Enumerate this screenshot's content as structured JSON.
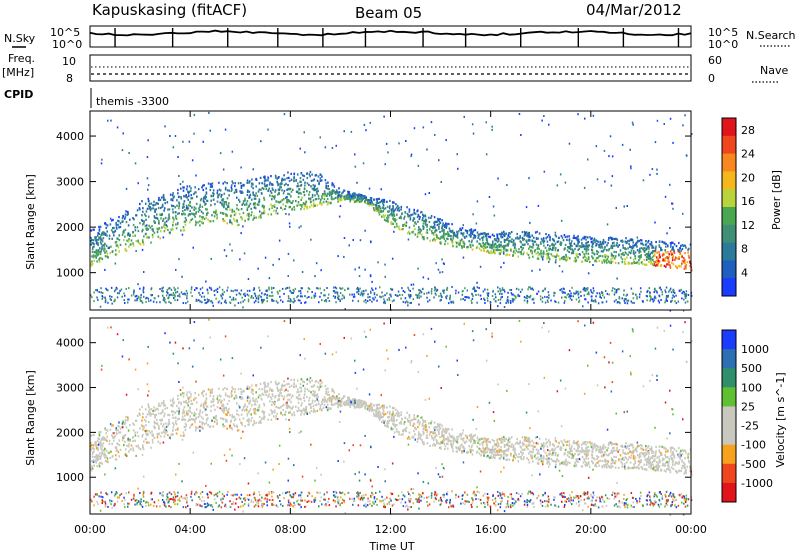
{
  "header": {
    "station": "Kapuskasing (fitACF)",
    "beam": "Beam 05",
    "date": "04/Mar/2012"
  },
  "status_panels": {
    "nsky_label": "N.Sky",
    "nsky_ticks": [
      "10^5",
      "10^0"
    ],
    "nsearch_label": "N.Search",
    "nsearch_ticks": [
      "10^5",
      "10^0"
    ],
    "freq_label": "Freq.",
    "freq_unit": "[MHz]",
    "freq_ticks": [
      "10",
      "8"
    ],
    "nave_label": "Nave",
    "nave_ticks": [
      "60",
      "0"
    ],
    "cpid_label": "CPID",
    "cpid_value": "themis -3300"
  },
  "x_axis": {
    "label": "Time UT",
    "ticks": [
      "00:00",
      "04:00",
      "08:00",
      "12:00",
      "16:00",
      "20:00",
      "00:00"
    ]
  },
  "colors": {
    "power": [
      "#1a3cff",
      "#1f5fbe",
      "#2c7a9a",
      "#3e8f73",
      "#49a752",
      "#b9d43a",
      "#f5b81c",
      "#f7871e",
      "#f0461e",
      "#e0141a"
    ],
    "velocity": [
      "#e0141a",
      "#f0461e",
      "#f6a21e",
      "#c8c8be",
      "#c8c8be",
      "#5fc032",
      "#2e8f6b",
      "#2c6fb2",
      "#1a3cff"
    ]
  },
  "chart_data": [
    {
      "type": "heatmap",
      "title": "",
      "xlabel": "Time UT",
      "ylabel": "Slant Range [km]",
      "xlim": [
        0,
        24
      ],
      "ylim": [
        180,
        4550
      ],
      "yticks": [
        "1000",
        "2000",
        "3000",
        "4000"
      ],
      "colorbar": {
        "label": "Power [dB]",
        "ticks": [
          "4",
          "8",
          "12",
          "16",
          "20",
          "24",
          "28"
        ],
        "range": [
          0,
          30
        ]
      },
      "echo_envelope": {
        "x": [
          0,
          1,
          2,
          3,
          4,
          5,
          6,
          7,
          8,
          9,
          10,
          11,
          12,
          13,
          14,
          15,
          16,
          17,
          18,
          19,
          20,
          21,
          22,
          23,
          24
        ],
        "lower_range": [
          1150,
          1400,
          1600,
          1800,
          2000,
          2150,
          2050,
          2250,
          2400,
          2450,
          2600,
          2550,
          2050,
          1800,
          1650,
          1550,
          1450,
          1380,
          1300,
          1280,
          1250,
          1220,
          1200,
          1150,
          1050
        ],
        "upper_range": [
          1950,
          2250,
          2600,
          2800,
          2950,
          3000,
          3050,
          3150,
          3200,
          3250,
          2850,
          2700,
          2600,
          2400,
          2200,
          2000,
          1900,
          1950,
          1900,
          1850,
          1800,
          1800,
          1750,
          1700,
          1650
        ]
      },
      "ground_scatter_band_km": [
        350,
        700
      ],
      "notes": ""
    },
    {
      "type": "heatmap",
      "title": "",
      "xlabel": "Time UT",
      "ylabel": "Slant Range [km]",
      "xlim": [
        0,
        24
      ],
      "ylim": [
        180,
        4550
      ],
      "yticks": [
        "1000",
        "2000",
        "3000",
        "4000"
      ],
      "colorbar": {
        "label": "Velocity [m s^-1]",
        "ticks": [
          "-1000",
          "-500",
          "-100",
          "-25",
          "25",
          "100",
          "500",
          "1000"
        ]
      },
      "echo_envelope": {
        "x": [
          0,
          1,
          2,
          3,
          4,
          5,
          6,
          7,
          8,
          9,
          10,
          11,
          12,
          13,
          14,
          15,
          16,
          17,
          18,
          19,
          20,
          21,
          22,
          23,
          24
        ],
        "lower_range": [
          1150,
          1400,
          1600,
          1800,
          2000,
          2150,
          2050,
          2250,
          2400,
          2450,
          2600,
          2550,
          2050,
          1800,
          1650,
          1550,
          1450,
          1380,
          1300,
          1280,
          1250,
          1220,
          1200,
          1150,
          1050
        ],
        "upper_range": [
          1950,
          2250,
          2600,
          2800,
          2950,
          3000,
          3050,
          3150,
          3200,
          3250,
          2850,
          2700,
          2600,
          2400,
          2200,
          2000,
          1900,
          1950,
          1900,
          1850,
          1800,
          1800,
          1750,
          1700,
          1650
        ]
      }
    }
  ]
}
